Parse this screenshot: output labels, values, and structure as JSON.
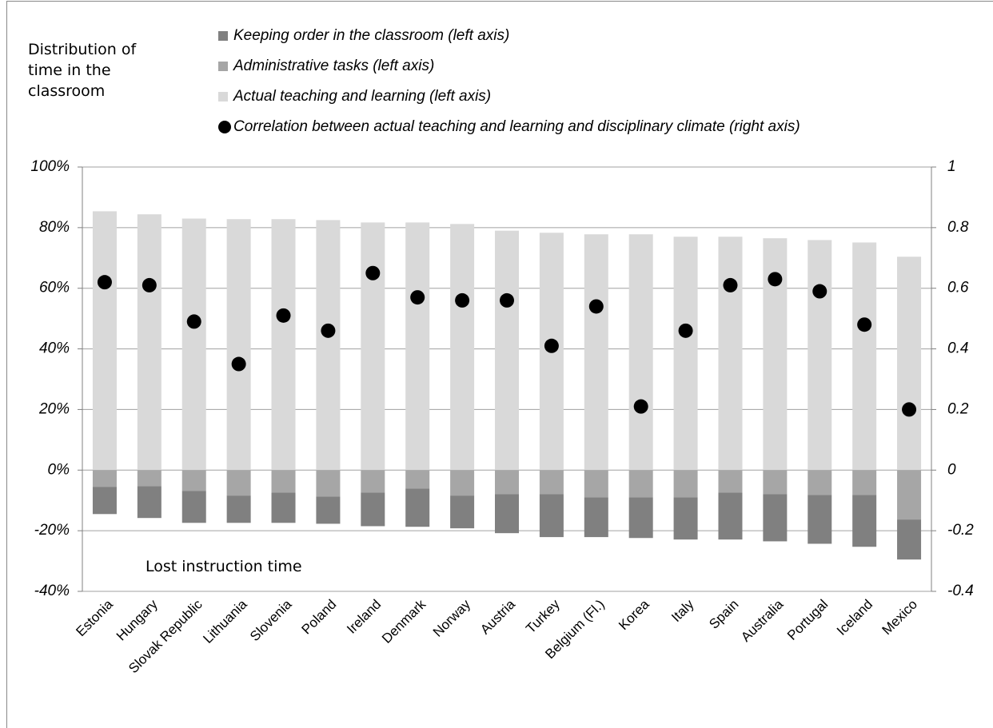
{
  "chart_data": {
    "type": "bar",
    "annotations": [
      "Distribution of time in the classroom",
      "Lost instruction time"
    ],
    "categories": [
      "Estonia",
      "Hungary",
      "Slovak Republic",
      "Lithuania",
      "Slovenia",
      "Poland",
      "Ireland",
      "Denmark",
      "Norway",
      "Austria",
      "Turkey",
      "Belgium (Fl.)",
      "Korea",
      "Italy",
      "Spain",
      "Australia",
      "Portugal",
      "Iceland",
      "Mexico"
    ],
    "series": [
      {
        "name": "Keeping order in the classroom (left axis)",
        "type": "bar",
        "color": "#808080",
        "values": [
          -9,
          -10.5,
          -10.5,
          -9,
          -10,
          -9,
          -11.1,
          -12.6,
          -10.8,
          -12.9,
          -14.2,
          -13.1,
          -13.4,
          -13.9,
          -15.5,
          -15.6,
          -16.1,
          -17.1,
          -13.2
        ]
      },
      {
        "name": "Administrative tasks (left axis)",
        "type": "bar",
        "color": "#a6a6a6",
        "values": [
          -5.5,
          -5.3,
          -6.9,
          -8.4,
          -7.4,
          -8.7,
          -7.4,
          -6.1,
          -8.4,
          -7.9,
          -7.9,
          -9,
          -9,
          -9,
          -7.4,
          -7.9,
          -8.2,
          -8.2,
          -16.3
        ]
      },
      {
        "name": "Actual teaching and learning (left axis)",
        "type": "bar",
        "color": "#d9d9d9",
        "values": [
          85.4,
          84.4,
          83,
          82.8,
          82.8,
          82.5,
          81.7,
          81.7,
          81.2,
          79,
          78.3,
          77.8,
          77.8,
          77,
          77,
          76.5,
          75.9,
          75.1,
          70.4
        ]
      },
      {
        "name": "Correlation between actual teaching and learning and disciplinary climate (right axis)",
        "type": "scatter",
        "axis": "y2",
        "color": "#000000",
        "values": [
          0.62,
          0.61,
          0.49,
          0.35,
          0.51,
          0.46,
          0.65,
          0.57,
          0.56,
          0.56,
          0.41,
          0.54,
          0.21,
          0.46,
          0.61,
          0.63,
          0.59,
          0.48,
          0.2
        ]
      }
    ],
    "ylim": [
      -40,
      100
    ],
    "yticks": [
      {
        "value": -40,
        "label": "-40%"
      },
      {
        "value": -20,
        "label": "-20%"
      },
      {
        "value": 0,
        "label": "0%"
      },
      {
        "value": 20,
        "label": "20%"
      },
      {
        "value": 40,
        "label": "40%"
      },
      {
        "value": 60,
        "label": "60%"
      },
      {
        "value": 80,
        "label": "80%"
      },
      {
        "value": 100,
        "label": "100%"
      }
    ],
    "y2lim": [
      -0.4,
      1
    ],
    "y2ticks": [
      -0.4,
      -0.2,
      0,
      0.2,
      0.4,
      0.6,
      0.8,
      1
    ],
    "grid": true
  }
}
